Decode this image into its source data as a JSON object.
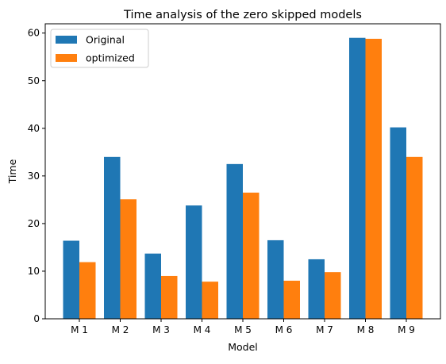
{
  "chart_data": {
    "type": "bar",
    "title": "Time analysis of the zero skipped models",
    "xlabel": "Model",
    "ylabel": "Time",
    "categories": [
      "M 1",
      "M 2",
      "M 3",
      "M 4",
      "M 5",
      "M 6",
      "M 7",
      "M 8",
      "M 9"
    ],
    "series": [
      {
        "name": "Original",
        "color": "#1f77b4",
        "values": [
          16.4,
          34.0,
          13.7,
          23.8,
          32.5,
          16.5,
          12.5,
          59.0,
          40.2
        ]
      },
      {
        "name": "optimized",
        "color": "#ff7f0e",
        "values": [
          11.9,
          25.1,
          9.0,
          7.8,
          26.5,
          8.0,
          9.8,
          58.8,
          34.0
        ]
      }
    ],
    "ylim": [
      0,
      61.95
    ],
    "yticks": [
      0,
      10,
      20,
      30,
      40,
      50,
      60
    ],
    "grid": false,
    "legend_position": "top-left"
  }
}
